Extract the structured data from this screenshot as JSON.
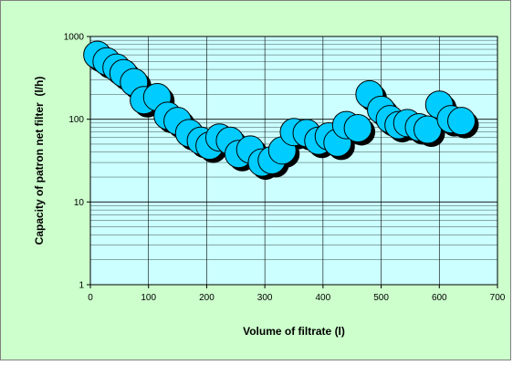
{
  "chart_data": {
    "type": "scatter",
    "title": "",
    "xlabel": "Volume of filtrate (l)",
    "ylabel": "Capacity of patron net filter  (l/h)",
    "xlim": [
      0,
      700
    ],
    "ylim": [
      1,
      1000
    ],
    "yscale": "log",
    "x_ticks": [
      "0",
      "100",
      "200",
      "300",
      "400",
      "500",
      "600",
      "700"
    ],
    "y_ticks": [
      "1",
      "10",
      "100",
      "1000"
    ],
    "grid": true,
    "legend": "none",
    "colors": {
      "background": "#ccffcc",
      "plot_area": "#ccffff",
      "marker_fill": "#00ccff",
      "marker_shadow": "#000000",
      "grid": "#000000"
    },
    "series": [
      {
        "x": [
          12,
          28,
          45,
          57,
          75,
          92,
          115,
          133,
          150,
          170,
          190,
          205,
          222,
          240,
          255,
          275,
          295,
          312,
          330,
          350,
          372,
          392,
          410,
          425,
          440,
          460,
          480,
          500,
          515,
          530,
          545,
          565,
          580,
          600,
          620,
          638
        ],
        "y": [
          600,
          500,
          420,
          360,
          280,
          170,
          185,
          110,
          95,
          68,
          55,
          48,
          60,
          55,
          38,
          43,
          30,
          32,
          42,
          70,
          68,
          55,
          62,
          52,
          85,
          78,
          200,
          130,
          100,
          85,
          90,
          80,
          75,
          150,
          100,
          95
        ]
      }
    ]
  }
}
